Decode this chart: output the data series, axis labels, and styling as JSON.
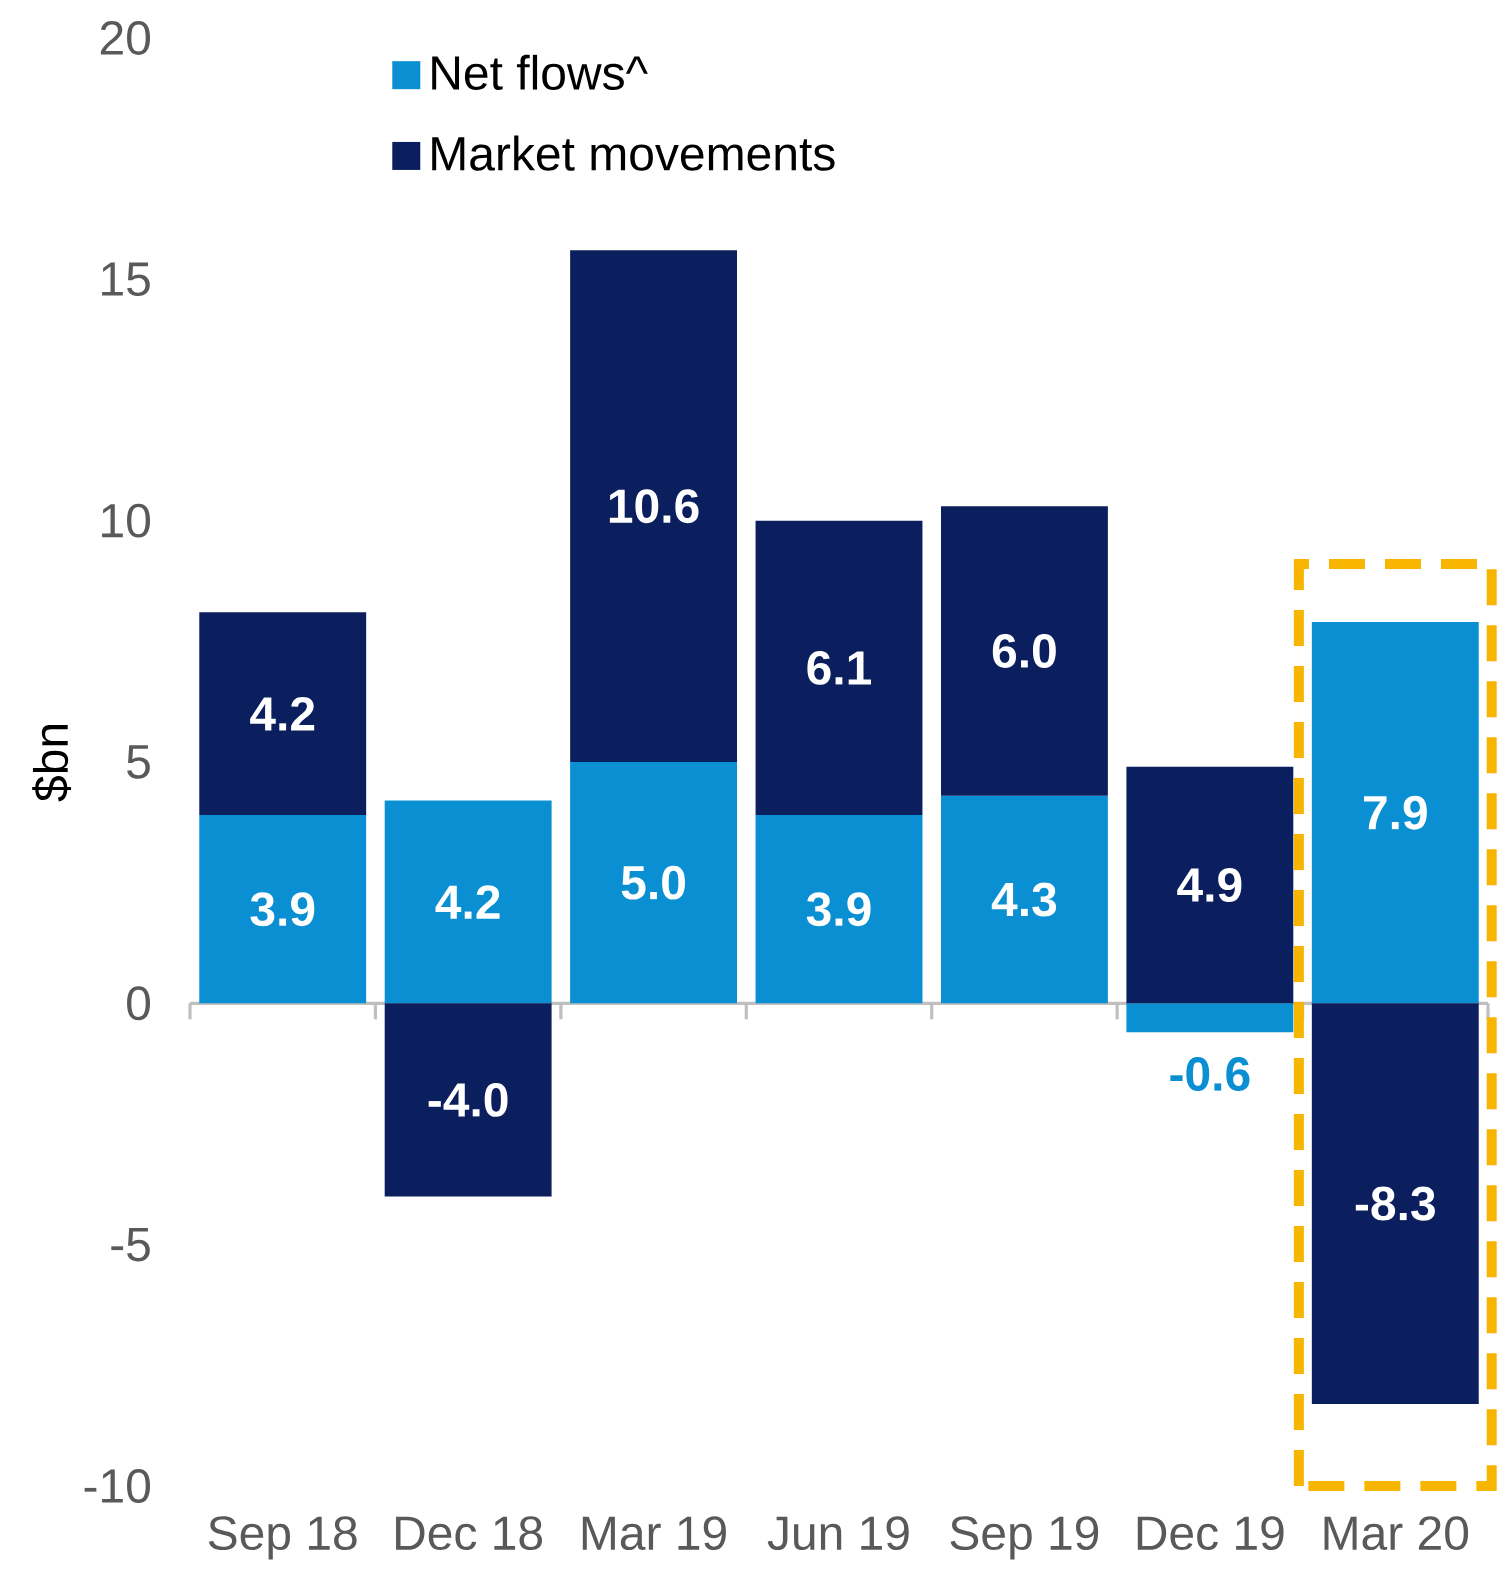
{
  "chart_data": {
    "type": "bar",
    "stacked": true,
    "ylabel": "$bn",
    "categories": [
      "Sep 18",
      "Dec 18",
      "Mar 19",
      "Jun 19",
      "Sep 19",
      "Dec 19",
      "Mar 20"
    ],
    "series": [
      {
        "name": "Net flows^",
        "color": "#0a8fd2",
        "values": [
          3.9,
          4.2,
          5.0,
          3.9,
          4.3,
          -0.6,
          7.9
        ],
        "value_labels": [
          "3.9",
          "4.2",
          "5.0",
          "3.9",
          "4.3",
          "-0.6",
          "7.9"
        ]
      },
      {
        "name": "Market movements",
        "color": "#0b1f5e",
        "values": [
          4.2,
          -4.0,
          10.6,
          6.1,
          6.0,
          4.9,
          -8.3
        ],
        "value_labels": [
          "4.2",
          "-4.0",
          "10.6",
          "6.1",
          "6.0",
          "4.9",
          "-8.3"
        ]
      }
    ],
    "ylim": [
      -10,
      20
    ],
    "yticks": [
      -10,
      -5,
      0,
      5,
      10,
      15,
      20
    ],
    "legend": "top"
  }
}
